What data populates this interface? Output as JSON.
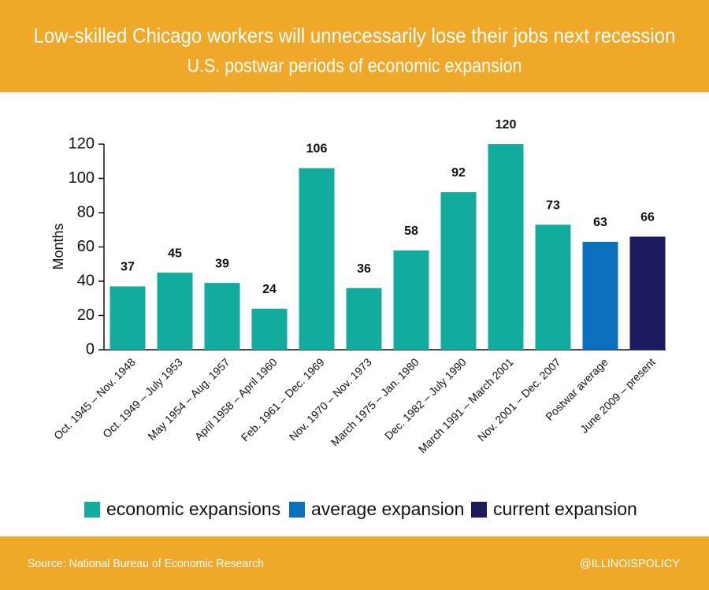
{
  "chart_data": {
    "type": "bar",
    "title": "Low-skilled Chicago workers will unnecessarily lose their jobs next recession",
    "subtitle": "U.S. postwar periods of economic expansion",
    "y_label": "Months",
    "categories": [
      "Oct. 1945 – Nov. 1948",
      "Oct. 1949 – July 1953",
      "May 1954 – Aug. 1957",
      "April 1958 – April 1960",
      "Feb. 1961 – Dec. 1969",
      "Nov. 1970 – Nov. 1973",
      "March 1975 – Jan. 1980",
      "Dec. 1982 – July 1990",
      "March 1991 – March 2001",
      "Nov. 2001 – Dec. 2007",
      "Postwar average",
      "June 2009 – present"
    ],
    "series": [
      {
        "name": "economic expansions",
        "color": "#14ab9f",
        "values": [
          37,
          45,
          39,
          24,
          106,
          36,
          58,
          92,
          120,
          73,
          null,
          null
        ]
      },
      {
        "name": "average expansion",
        "color": "#0b71be",
        "values": [
          null,
          null,
          null,
          null,
          null,
          null,
          null,
          null,
          null,
          null,
          63,
          null
        ]
      },
      {
        "name": "current expansion",
        "color": "#1d1b5f",
        "values": [
          null,
          null,
          null,
          null,
          null,
          null,
          null,
          null,
          null,
          null,
          null,
          66
        ]
      }
    ],
    "ylim": [
      0,
      120
    ],
    "yticks": [
      0,
      20,
      40,
      60,
      80,
      100,
      120
    ],
    "source": "Source: National Bureau of Economic Research",
    "credit": "@ILLINOISPOLICY"
  }
}
